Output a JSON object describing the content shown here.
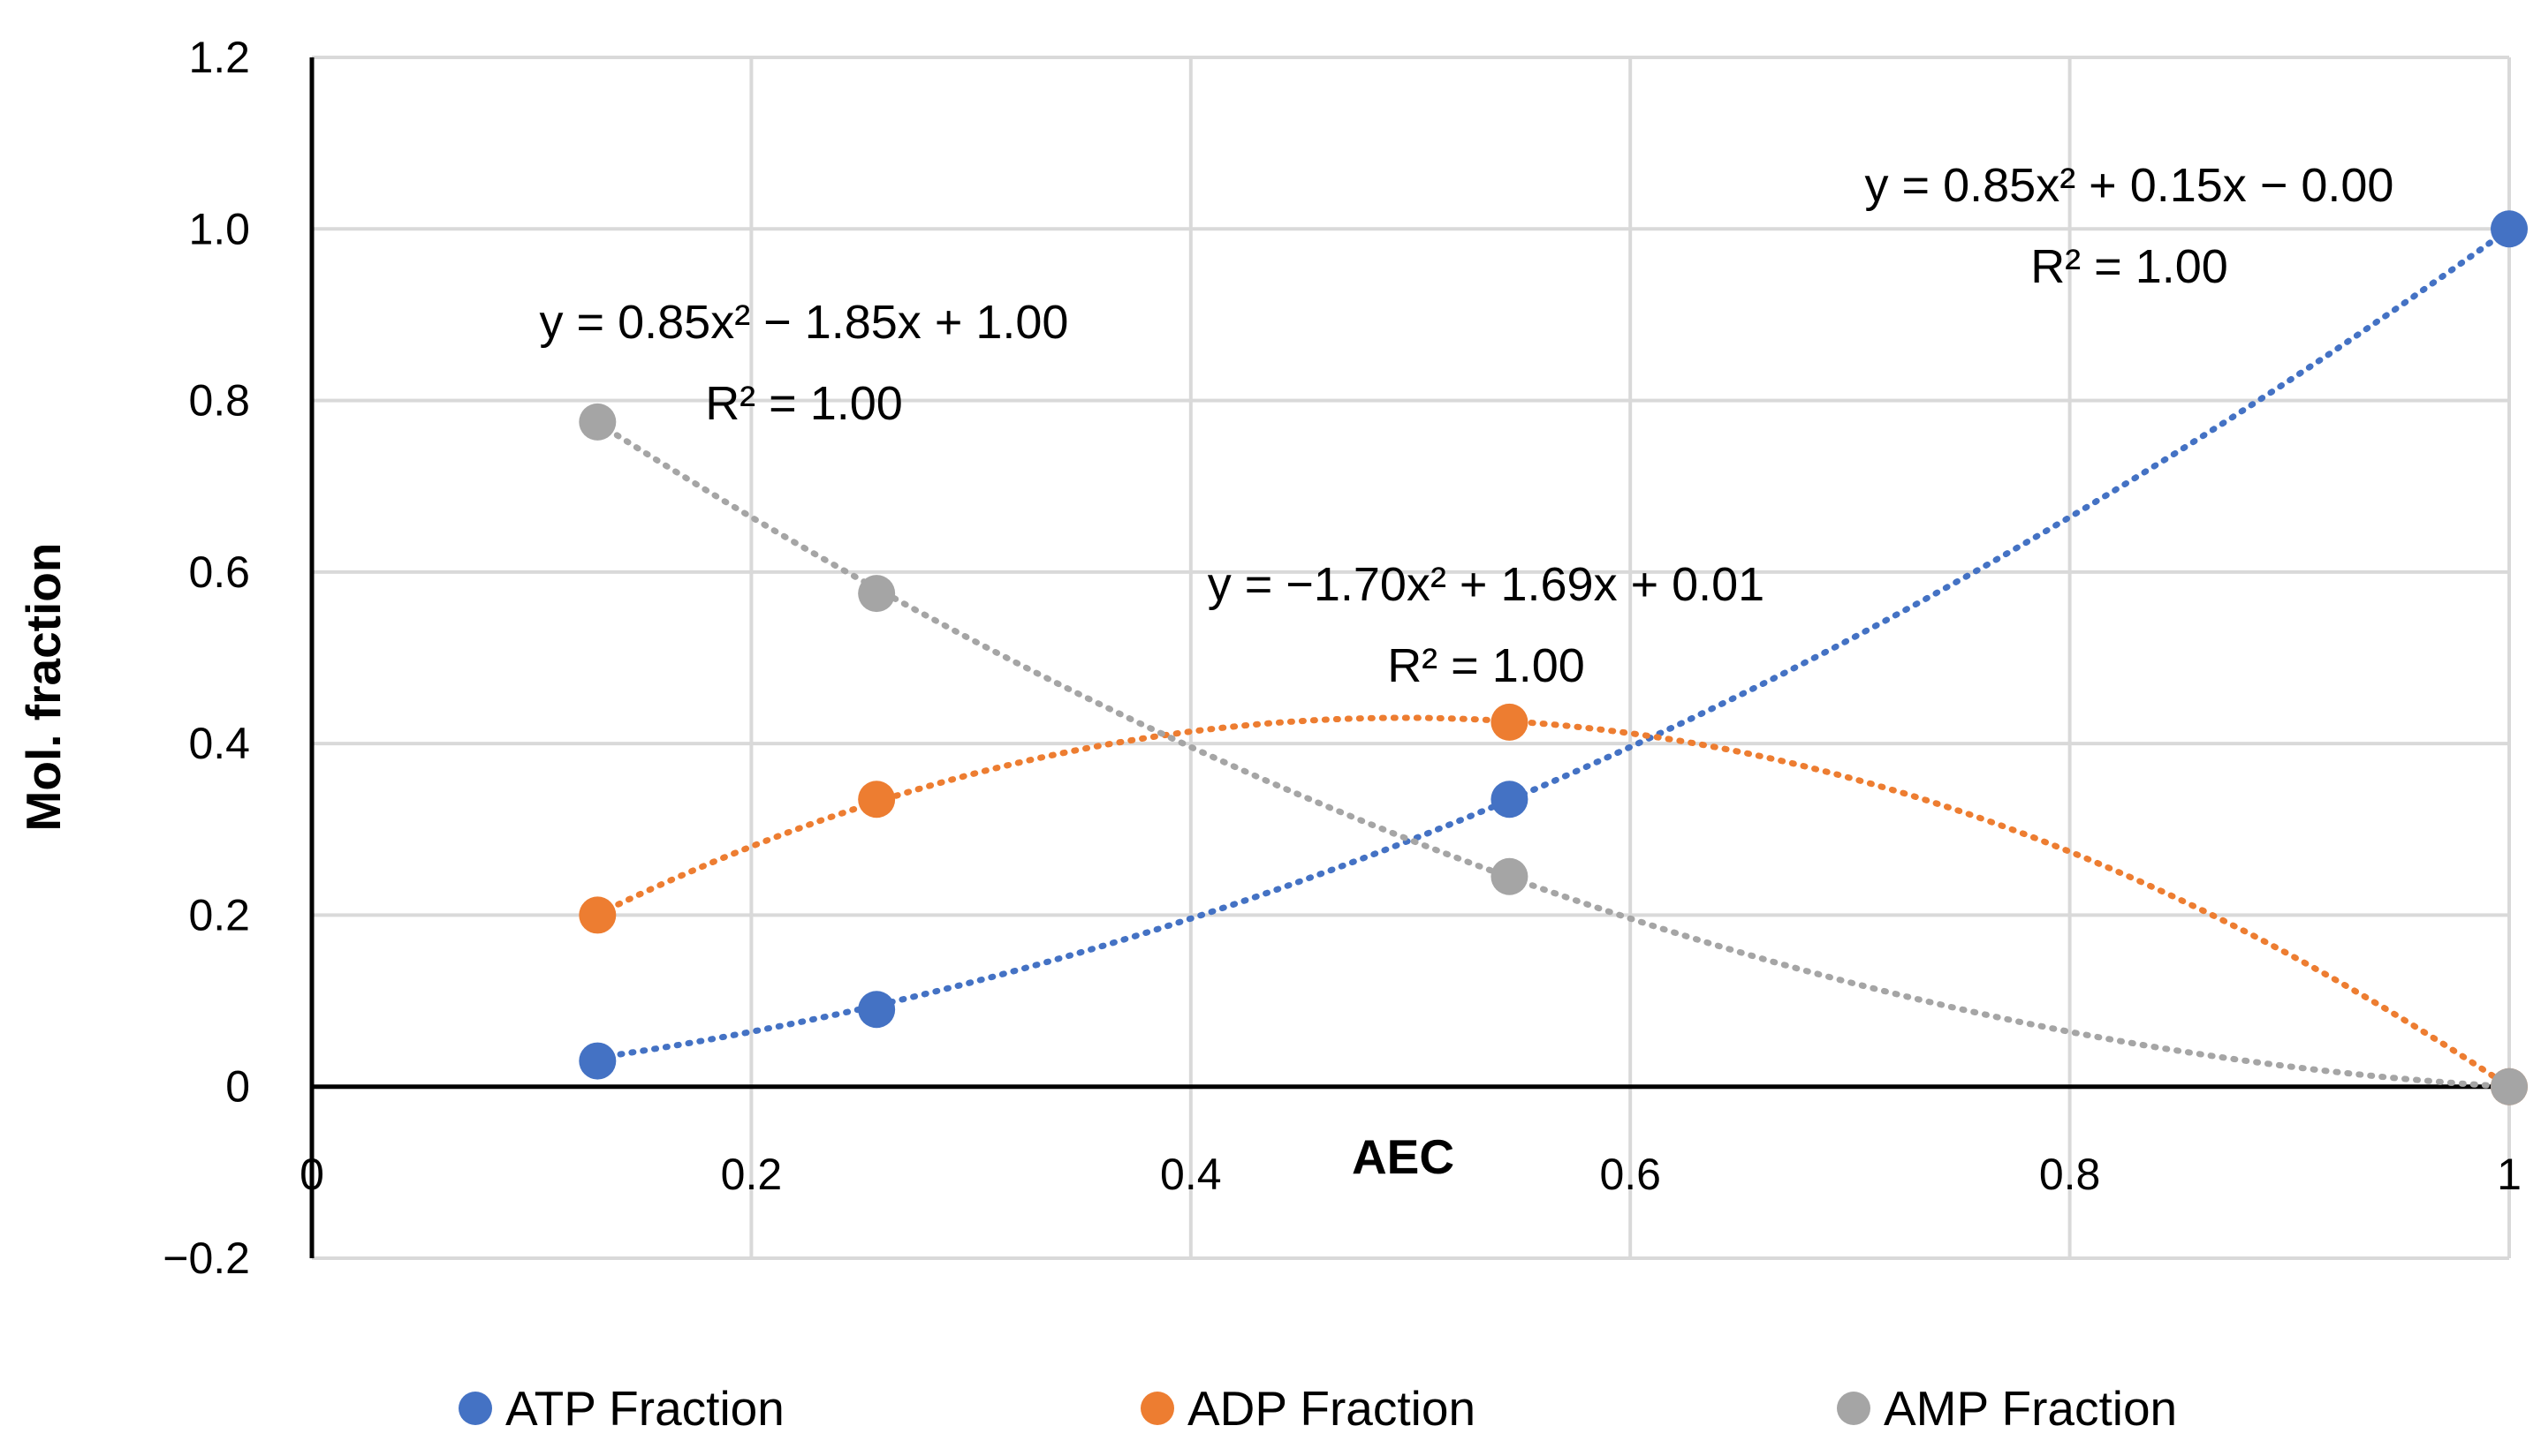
{
  "chart_data": {
    "type": "scatter",
    "xlabel": "AEC",
    "ylabel": "Mol. fraction",
    "xlim": [
      0,
      1
    ],
    "ylim": [
      -0.2,
      1.2
    ],
    "xticks": [
      0,
      0.2,
      0.4,
      0.6,
      0.8,
      1
    ],
    "xtick_labels": [
      "0",
      "0.2",
      "0.4",
      "0.6",
      "0.8",
      "1"
    ],
    "yticks": [
      -0.2,
      0,
      0.2,
      0.4,
      0.6,
      0.8,
      1.0,
      1.2
    ],
    "ytick_labels": [
      "−0.2",
      "0",
      "0.2",
      "0.4",
      "0.6",
      "0.8",
      "1.0",
      "1.2"
    ],
    "grid": true,
    "legend_position": "bottom",
    "series": [
      {
        "name": "ATP Fraction",
        "color": "#4472C4",
        "x": [
          0.13,
          0.257,
          0.545,
          1.0
        ],
        "y": [
          0.03,
          0.09,
          0.335,
          1.0
        ],
        "trendline": {
          "type": "polynomial",
          "coefficients": [
            0.85,
            0.15,
            0.0
          ],
          "equation": "y = 0.85x² + 0.15x − 0.00",
          "r2": "R² = 1.00"
        }
      },
      {
        "name": "ADP Fraction",
        "color": "#ED7D31",
        "x": [
          0.13,
          0.257,
          0.545,
          1.0
        ],
        "y": [
          0.2,
          0.335,
          0.425,
          0.0
        ],
        "trendline": {
          "type": "polynomial",
          "coefficients": [
            -1.7,
            1.69,
            0.01
          ],
          "equation": "y = −1.70x² + 1.69x + 0.01",
          "r2": "R² = 1.00"
        }
      },
      {
        "name": "AMP Fraction",
        "color": "#A5A5A5",
        "x": [
          0.13,
          0.257,
          0.545,
          1.0
        ],
        "y": [
          0.775,
          0.575,
          0.245,
          0.0
        ],
        "trendline": {
          "type": "polynomial",
          "coefficients": [
            0.85,
            -1.85,
            1.0
          ],
          "equation": "y = 0.85x² − 1.85x + 1.00",
          "r2": "R² = 1.00"
        }
      }
    ]
  }
}
